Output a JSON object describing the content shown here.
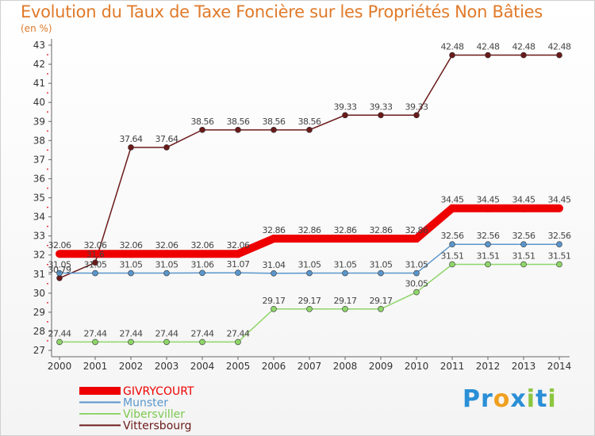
{
  "header": {
    "title": "Evolution du Taux de Taxe Foncière sur les Propriétés Non Bâties",
    "unit": "(en %)"
  },
  "logo": {
    "text": "Proxiti",
    "letters": [
      "P",
      "r",
      "o",
      "x",
      "i",
      "t",
      "i"
    ],
    "colors": [
      "#2a8fd6",
      "#2a8fd6",
      "#f0a020",
      "#2a8fd6",
      "#8cc63f",
      "#2a8fd6",
      "#8cc63f"
    ]
  },
  "chart_data": {
    "type": "line",
    "x": [
      "2000",
      "2001",
      "2002",
      "2003",
      "2004",
      "2005",
      "2006",
      "2007",
      "2008",
      "2009",
      "2010",
      "2011",
      "2012",
      "2013",
      "2014"
    ],
    "ylim": [
      27,
      43
    ],
    "yticks": [
      "27",
      "28",
      "29",
      "30",
      "31",
      "32",
      "33",
      "34",
      "35",
      "36",
      "37",
      "38",
      "39",
      "40",
      "41",
      "42",
      "43"
    ],
    "grid": false,
    "legend": "bottom-left",
    "series": [
      {
        "name": "Vittersbourg",
        "color": "#6b1a1a",
        "values": [
          30.79,
          31.6,
          37.64,
          37.64,
          38.56,
          38.56,
          38.56,
          38.56,
          39.33,
          39.33,
          39.33,
          42.48,
          42.48,
          42.48,
          42.48
        ],
        "labels": [
          "30.79",
          "31.6",
          "37.64",
          "37.64",
          "38.56",
          "38.56",
          "38.56",
          "38.56",
          "39.33",
          "39.33",
          "39.33",
          "42.48",
          "42.48",
          "42.48",
          "42.48"
        ]
      },
      {
        "name": "Vibersviller",
        "color": "#8fd66a",
        "values": [
          27.44,
          27.44,
          27.44,
          27.44,
          27.44,
          27.44,
          29.17,
          29.17,
          29.17,
          29.17,
          30.05,
          31.51,
          31.51,
          31.51,
          31.51
        ],
        "labels": [
          "27.44",
          "27.44",
          "27.44",
          "27.44",
          "27.44",
          "27.44",
          "29.17",
          "29.17",
          "29.17",
          "29.17",
          "30.05",
          "31.51",
          "31.51",
          "31.51",
          "31.51"
        ]
      },
      {
        "name": "Munster",
        "color": "#5a96cc",
        "values": [
          31.05,
          31.05,
          31.05,
          31.05,
          31.06,
          31.07,
          31.04,
          31.05,
          31.05,
          31.05,
          31.05,
          32.56,
          32.56,
          32.56,
          32.56
        ],
        "labels": [
          "31.05",
          "31.05",
          "31.05",
          "31.05",
          "31.06",
          "31.07",
          "31.04",
          "31.05",
          "31.05",
          "31.05",
          "31.05",
          "32.56",
          "32.56",
          "32.56",
          "32.56"
        ]
      },
      {
        "name": "GIVRYCOURT",
        "color": "#ee0000",
        "values": [
          32.06,
          32.06,
          32.06,
          32.06,
          32.06,
          32.06,
          32.86,
          32.86,
          32.86,
          32.86,
          32.86,
          34.45,
          34.45,
          34.45,
          34.45
        ],
        "labels": [
          "32.06",
          "32.06",
          "32.06",
          "32.06",
          "32.06",
          "32.06",
          "32.86",
          "32.86",
          "32.86",
          "32.86",
          "32.86",
          "34.45",
          "34.45",
          "34.45",
          "34.45"
        ]
      }
    ],
    "legend_order": [
      "GIVRYCOURT",
      "Munster",
      "Vibersviller",
      "Vittersbourg"
    ]
  }
}
